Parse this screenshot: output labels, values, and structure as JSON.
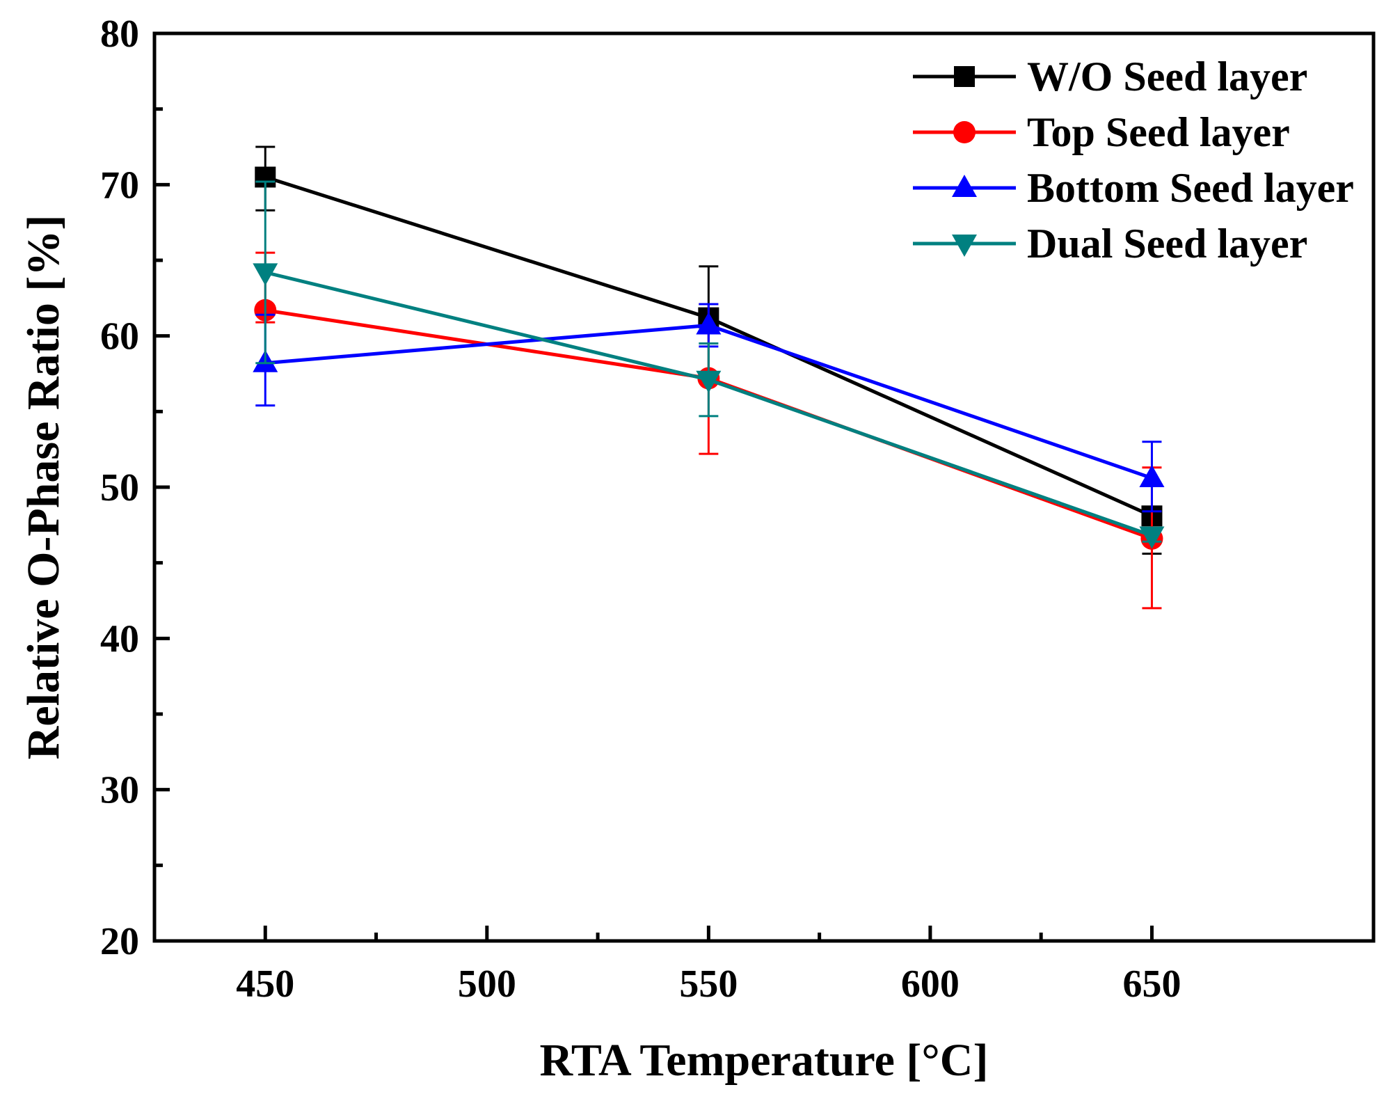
{
  "chart_data": {
    "type": "line",
    "title": "",
    "xlabel": "RTA Temperature [°C]",
    "ylabel": "Relative O-Phase Ratio [%]",
    "xlim": [
      425,
      700
    ],
    "ylim": [
      20,
      80
    ],
    "x_ticks": [
      450,
      500,
      550,
      600,
      650
    ],
    "x_minor_ticks": [
      475,
      525,
      575,
      625
    ],
    "y_ticks": [
      20,
      30,
      40,
      50,
      60,
      70,
      80
    ],
    "y_minor_ticks": [
      25,
      35,
      45,
      55,
      65,
      75
    ],
    "x": [
      450,
      550,
      650
    ],
    "legend_position": "top-right",
    "grid": false,
    "series": [
      {
        "name": "W/O Seed layer",
        "color": "#000000",
        "marker": "square",
        "values": [
          70.5,
          61.2,
          48.1
        ],
        "err_low": [
          2.2,
          3.9,
          2.5
        ],
        "err_high": [
          2.0,
          3.4,
          0.5
        ]
      },
      {
        "name": "Top Seed layer",
        "color": "#ff0000",
        "marker": "circle",
        "values": [
          61.7,
          57.2,
          46.6
        ],
        "err_low": [
          0.8,
          5.0,
          4.6
        ],
        "err_high": [
          3.8,
          4.9,
          4.7
        ]
      },
      {
        "name": "Bottom Seed layer",
        "color": "#0000ff",
        "marker": "triangle-up",
        "values": [
          58.2,
          60.7,
          50.6
        ],
        "err_low": [
          2.8,
          1.4,
          2.2
        ],
        "err_high": [
          3.2,
          1.4,
          2.4
        ]
      },
      {
        "name": "Dual Seed layer",
        "color": "#008080",
        "marker": "triangle-down",
        "values": [
          64.2,
          57.1,
          46.8
        ],
        "err_low": [
          6.0,
          2.4,
          0.4
        ],
        "err_high": [
          6.0,
          2.4,
          0.4
        ]
      }
    ]
  }
}
